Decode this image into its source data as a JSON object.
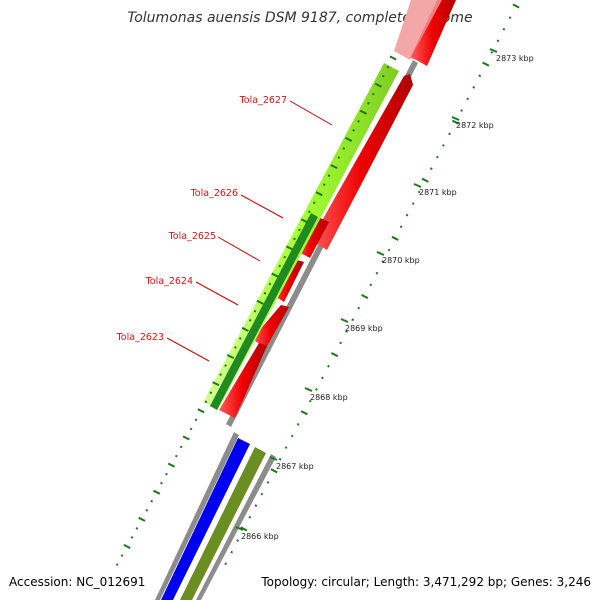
{
  "title": "Tolumonas auensis DSM 9187, complete genome",
  "accession": "Accession: NC_012691",
  "summary": "Topology: circular; Length: 3,471,292 bp; Genes: 3,246",
  "ticks": [
    "2873 kbp",
    "2872 kbp",
    "2871 kbp",
    "2870 kbp",
    "2869 kbp",
    "2868 kbp",
    "2867 kbp",
    "2866 kbp"
  ],
  "genes": [
    {
      "name": "Tola_2627"
    },
    {
      "name": "Tola_2626"
    },
    {
      "name": "Tola_2625"
    },
    {
      "name": "Tola_2624"
    },
    {
      "name": "Tola_2623"
    }
  ],
  "colors": {
    "cds_forward": "#ee0000",
    "cds_light": "#f4a0a0",
    "feature_green": "#a6ff33",
    "feature_darkgreen": "#1f8a1f",
    "feature_blue": "#0000ee",
    "feature_olive": "#6b8e23",
    "backbone": "#808080",
    "tick": "#1a7a1a"
  }
}
